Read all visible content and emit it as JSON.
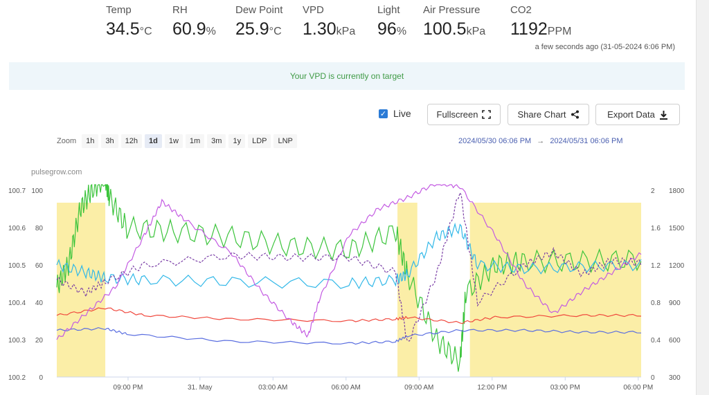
{
  "metrics": [
    {
      "label": "Temp",
      "value": "34.5",
      "unit": "°C"
    },
    {
      "label": "RH",
      "value": "60.9",
      "unit": "%"
    },
    {
      "label": "Dew Point",
      "value": "25.9",
      "unit": "°C"
    },
    {
      "label": "VPD",
      "value": "1.30",
      "unit": "kPa"
    },
    {
      "label": "Light",
      "value": "96",
      "unit": "%"
    },
    {
      "label": "Air Pressure",
      "value": "100.5",
      "unit": "kPa"
    },
    {
      "label": "CO2",
      "value": "1192",
      "unit": "PPM"
    }
  ],
  "updated_text": "a few seconds ago (31-05-2024 6:06 PM)",
  "banner_text": "Your VPD is currently on target",
  "controls": {
    "live_label": "Live",
    "live_checked": true,
    "fullscreen_label": "Fullscreen",
    "share_label": "Share Chart",
    "export_label": "Export Data"
  },
  "zoom": {
    "label": "Zoom",
    "options": [
      "1h",
      "3h",
      "12h",
      "1d",
      "1w",
      "1m",
      "3m",
      "1y",
      "LDP",
      "LNP"
    ],
    "active": "1d"
  },
  "range": {
    "start": "2024/05/30 06:06 PM",
    "separator": "→",
    "end": "2024/05/31 06:06 PM"
  },
  "chart_credit": "pulsegrow.com",
  "chart_data": {
    "type": "line",
    "x_range": [
      "2024/05/30 06:06 PM",
      "2024/05/31 06:06 PM"
    ],
    "x_ticks": [
      "09:00 PM",
      "31. May",
      "03:00 AM",
      "06:00 AM",
      "09:00 AM",
      "12:00 PM",
      "03:00 PM",
      "06:00 PM"
    ],
    "axes": {
      "left_outer": {
        "ticks": [
          "100.7",
          "100.6",
          "100.5",
          "100.4",
          "100.3",
          "100.2"
        ],
        "range": [
          100.2,
          100.7
        ]
      },
      "left_inner": {
        "ticks": [
          "100",
          "80",
          "60",
          "40",
          "20",
          "0"
        ],
        "range": [
          0,
          100
        ]
      },
      "right_inner": {
        "ticks": [
          "2",
          "1.6",
          "1.2",
          "0.8",
          "0.4",
          "0"
        ],
        "range": [
          0,
          2
        ]
      },
      "right_outer": {
        "ticks": [
          "1800",
          "1500",
          "1200",
          "900",
          "600",
          "300"
        ],
        "range": [
          300,
          1800
        ]
      }
    },
    "light_on_bands": [
      [
        0.0,
        0.083
      ],
      [
        0.583,
        0.617
      ],
      [
        0.707,
        1.0
      ]
    ],
    "series": [
      {
        "color": "#3cc43c",
        "axis": "left_inner",
        "points": [
          [
            0,
            48
          ],
          [
            0.02,
            60
          ],
          [
            0.04,
            90
          ],
          [
            0.06,
            100
          ],
          [
            0.083,
            107
          ],
          [
            0.09,
            96
          ],
          [
            0.12,
            80
          ],
          [
            0.2,
            78
          ],
          [
            0.3,
            75
          ],
          [
            0.4,
            70
          ],
          [
            0.5,
            68
          ],
          [
            0.58,
            78
          ],
          [
            0.6,
            55
          ],
          [
            0.65,
            20
          ],
          [
            0.69,
            8
          ],
          [
            0.7,
            45
          ],
          [
            0.75,
            60
          ],
          [
            0.8,
            62
          ],
          [
            0.9,
            62
          ],
          [
            1.0,
            63
          ]
        ]
      },
      {
        "color": "#32b8e8",
        "axis": "left_inner",
        "points": [
          [
            0,
            60
          ],
          [
            0.05,
            56
          ],
          [
            0.083,
            53
          ],
          [
            0.15,
            52
          ],
          [
            0.3,
            51
          ],
          [
            0.5,
            50
          ],
          [
            0.58,
            52
          ],
          [
            0.6,
            55
          ],
          [
            0.65,
            75
          ],
          [
            0.69,
            80
          ],
          [
            0.72,
            60
          ],
          [
            0.8,
            58
          ],
          [
            0.9,
            59
          ],
          [
            1.0,
            60
          ]
        ]
      },
      {
        "color": "#f0473c",
        "axis": "left_inner",
        "points": [
          [
            0,
            33
          ],
          [
            0.083,
            37
          ],
          [
            0.15,
            33
          ],
          [
            0.3,
            31
          ],
          [
            0.5,
            30
          ],
          [
            0.58,
            31
          ],
          [
            0.6,
            32
          ],
          [
            0.69,
            29
          ],
          [
            0.75,
            32
          ],
          [
            0.9,
            33
          ],
          [
            1.0,
            33
          ]
        ]
      },
      {
        "color": "#5a6ee0",
        "axis": "left_inner",
        "points": [
          [
            0,
            25
          ],
          [
            0.083,
            26
          ],
          [
            0.12,
            23
          ],
          [
            0.3,
            19
          ],
          [
            0.5,
            18
          ],
          [
            0.58,
            19
          ],
          [
            0.6,
            22
          ],
          [
            0.69,
            25
          ],
          [
            0.8,
            25
          ],
          [
            0.9,
            24
          ],
          [
            1.0,
            24
          ]
        ]
      },
      {
        "color": "#c35ae2",
        "axis": "left_outer",
        "points": [
          [
            0,
            100.3
          ],
          [
            0.05,
            100.37
          ],
          [
            0.1,
            100.44
          ],
          [
            0.15,
            100.58
          ],
          [
            0.18,
            100.67
          ],
          [
            0.22,
            100.62
          ],
          [
            0.3,
            100.53
          ],
          [
            0.35,
            100.43
          ],
          [
            0.4,
            100.35
          ],
          [
            0.43,
            100.31
          ],
          [
            0.45,
            100.41
          ],
          [
            0.5,
            100.58
          ],
          [
            0.55,
            100.65
          ],
          [
            0.6,
            100.68
          ],
          [
            0.65,
            100.72
          ],
          [
            0.69,
            100.71
          ],
          [
            0.75,
            100.58
          ],
          [
            0.8,
            100.45
          ],
          [
            0.85,
            100.37
          ],
          [
            0.9,
            100.43
          ],
          [
            0.95,
            100.48
          ],
          [
            1.0,
            100.53
          ]
        ]
      },
      {
        "color": "#7a3ea6",
        "axis": "right_inner",
        "dashed": true,
        "points": [
          [
            0,
            1.04
          ],
          [
            0.05,
            0.9
          ],
          [
            0.083,
            1.02
          ],
          [
            0.15,
            1.2
          ],
          [
            0.3,
            1.3
          ],
          [
            0.4,
            1.28
          ],
          [
            0.5,
            1.28
          ],
          [
            0.58,
            1.12
          ],
          [
            0.6,
            0.35
          ],
          [
            0.65,
            1.1
          ],
          [
            0.69,
            2.0
          ],
          [
            0.72,
            0.8
          ],
          [
            0.8,
            1.2
          ],
          [
            0.85,
            1.34
          ],
          [
            0.9,
            1.1
          ],
          [
            0.95,
            1.25
          ],
          [
            1.0,
            1.22
          ]
        ]
      }
    ]
  }
}
